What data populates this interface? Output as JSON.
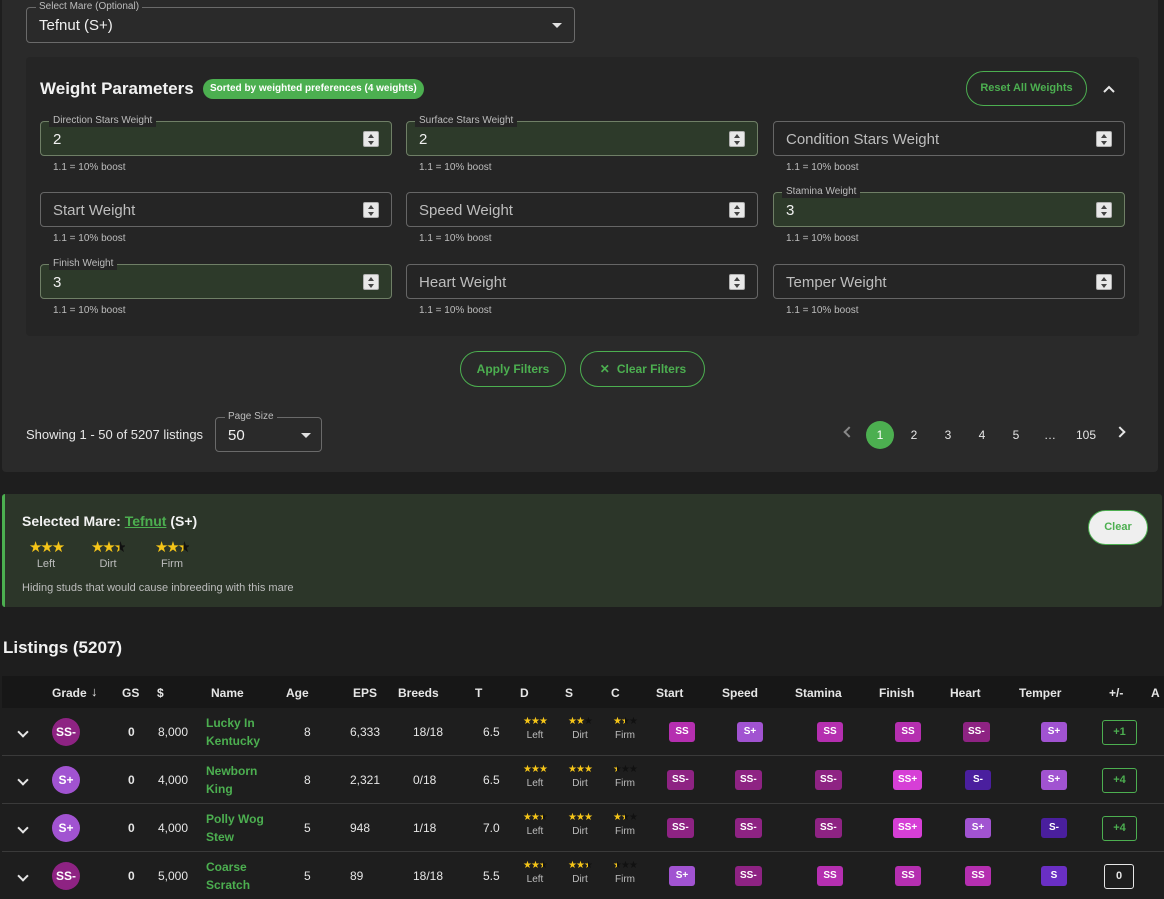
{
  "select_mare": {
    "label": "Select Mare (Optional)",
    "value": "Tefnut (S+)"
  },
  "weights": {
    "title": "Weight Parameters",
    "badge": "Sorted by weighted preferences (4 weights)",
    "reset_label": "Reset All Weights",
    "helper": "1.1 = 10% boost",
    "fields": [
      {
        "label": "Direction Stars Weight",
        "value": "2"
      },
      {
        "label": "Surface Stars Weight",
        "value": "2"
      },
      {
        "label": "Condition Stars Weight",
        "value": ""
      },
      {
        "label": "Start Weight",
        "value": ""
      },
      {
        "label": "Speed Weight",
        "value": ""
      },
      {
        "label": "Stamina Weight",
        "value": "3"
      },
      {
        "label": "Finish Weight",
        "value": "3"
      },
      {
        "label": "Heart Weight",
        "value": ""
      },
      {
        "label": "Temper Weight",
        "value": ""
      }
    ]
  },
  "filters": {
    "apply_label": "Apply Filters",
    "clear_label": "Clear Filters"
  },
  "pagination": {
    "showing": "Showing 1 - 50 of 5207 listings",
    "page_size_label": "Page Size",
    "page_size": "50",
    "pages": [
      "1",
      "2",
      "3",
      "4",
      "5",
      "…",
      "105"
    ],
    "current": "1"
  },
  "selected_mare": {
    "prefix": "Selected Mare:",
    "name": "Tefnut",
    "grade": "(S+)",
    "clear_label": "Clear",
    "stars": [
      {
        "label": "Left",
        "rating": 3.5
      },
      {
        "label": "Dirt",
        "rating": 2.5
      },
      {
        "label": "Firm",
        "rating": 2.5
      }
    ],
    "note": "Hiding studs that would cause inbreeding with this mare"
  },
  "listings": {
    "title": "Listings (5207)",
    "columns": [
      "Grade",
      "GS",
      "$",
      "Name",
      "Age",
      "EPS",
      "Breeds",
      "T",
      "D",
      "S",
      "C",
      "Start",
      "Speed",
      "Stamina",
      "Finish",
      "Heart",
      "Temper",
      "+/-",
      "A"
    ],
    "sort_icon": "arrow-down-icon",
    "rows": [
      {
        "grade": "SS-",
        "gs": "0",
        "price": "8,000",
        "name": "Lucky In Kentucky",
        "age": "8",
        "eps": "6,333",
        "breeds": "18/18",
        "t": "6.5",
        "d": {
          "label": "Left",
          "rating": 3
        },
        "s": {
          "label": "Dirt",
          "rating": 2
        },
        "c": {
          "label": "Firm",
          "rating": 1.5
        },
        "start": "SS",
        "speed": "S+",
        "stamina": "SS",
        "finish": "SS",
        "heart": "SS-",
        "temper": "S+",
        "delta": "+1"
      },
      {
        "grade": "S+",
        "gs": "0",
        "price": "4,000",
        "name": "Newborn King",
        "age": "8",
        "eps": "2,321",
        "breeds": "0/18",
        "t": "6.5",
        "d": {
          "label": "Left",
          "rating": 3
        },
        "s": {
          "label": "Dirt",
          "rating": 3
        },
        "c": {
          "label": "Firm",
          "rating": 0.5
        },
        "start": "SS-",
        "speed": "SS-",
        "stamina": "SS-",
        "finish": "SS+",
        "heart": "S-",
        "temper": "S+",
        "delta": "+4"
      },
      {
        "grade": "S+",
        "gs": "0",
        "price": "4,000",
        "name": "Polly Wog Stew",
        "age": "5",
        "eps": "948",
        "breeds": "1/18",
        "t": "7.0",
        "d": {
          "label": "Left",
          "rating": 2.5
        },
        "s": {
          "label": "Dirt",
          "rating": 3
        },
        "c": {
          "label": "Firm",
          "rating": 1.5
        },
        "start": "SS-",
        "speed": "SS-",
        "stamina": "SS-",
        "finish": "SS+",
        "heart": "S+",
        "temper": "S-",
        "delta": "+4"
      },
      {
        "grade": "SS-",
        "gs": "0",
        "price": "5,000",
        "name": "Coarse Scratch",
        "age": "5",
        "eps": "89",
        "breeds": "18/18",
        "t": "5.5",
        "d": {
          "label": "Left",
          "rating": 2.5
        },
        "s": {
          "label": "Dirt",
          "rating": 2.5
        },
        "c": {
          "label": "Firm",
          "rating": 0.5
        },
        "start": "S+",
        "speed": "SS-",
        "stamina": "SS",
        "finish": "SS",
        "heart": "SS",
        "temper": "S",
        "delta": "0"
      }
    ]
  },
  "colors": {
    "accent": "#4caf50",
    "grade_SS+": "#d63fd6",
    "grade_SS": "#b52fb0",
    "grade_SS-": "#8e2383",
    "grade_S+": "#a153d1",
    "grade_S": "#6a2fc4",
    "grade_S-": "#4a1f9e"
  }
}
